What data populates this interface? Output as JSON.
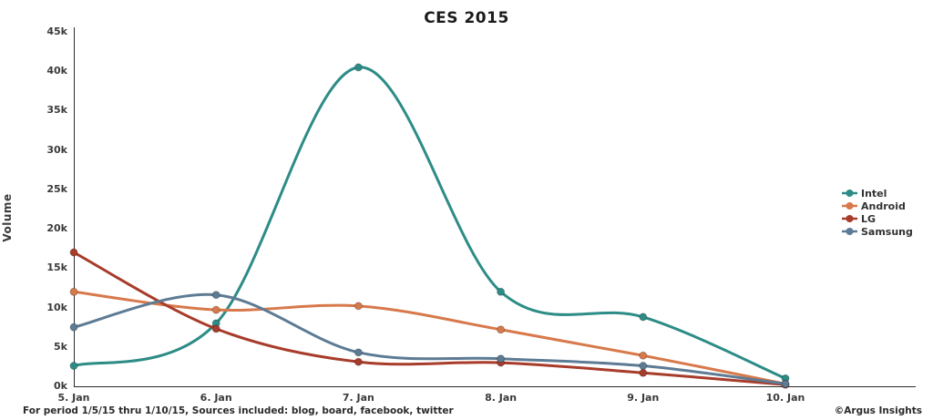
{
  "footer": {
    "note": "For period 1/5/15 thru 1/10/15, Sources included: blog, board, facebook, twitter",
    "credit": "©Argus Insights"
  },
  "chart_data": {
    "type": "line",
    "title": "CES 2015",
    "xlabel": "",
    "ylabel": "Volume",
    "categories": [
      "5. Jan",
      "6. Jan",
      "7. Jan",
      "8. Jan",
      "9. Jan",
      "10. Jan"
    ],
    "y_tick_labels": [
      "0k",
      "5k",
      "10k",
      "15k",
      "20k",
      "25k",
      "30k",
      "35k",
      "40k",
      "45k"
    ],
    "y_tick_values": [
      0,
      5000,
      10000,
      15000,
      20000,
      25000,
      30000,
      35000,
      40000,
      45000
    ],
    "ylim": [
      0,
      45000
    ],
    "grid": false,
    "legend_position": "right",
    "axis_color": "#2a2a2a",
    "series": [
      {
        "name": "Intel",
        "color": "#2d8c86",
        "values": [
          2600,
          8000,
          40500,
          12000,
          8800,
          1000
        ]
      },
      {
        "name": "Android",
        "color": "#d7794b",
        "values": [
          12000,
          9700,
          10200,
          7200,
          3900,
          300
        ]
      },
      {
        "name": "LG",
        "color": "#a83c2b",
        "values": [
          17000,
          7300,
          3100,
          3000,
          1700,
          200
        ]
      },
      {
        "name": "Samsung",
        "color": "#5d7b94",
        "values": [
          7500,
          11600,
          4300,
          3500,
          2600,
          300
        ]
      }
    ]
  }
}
